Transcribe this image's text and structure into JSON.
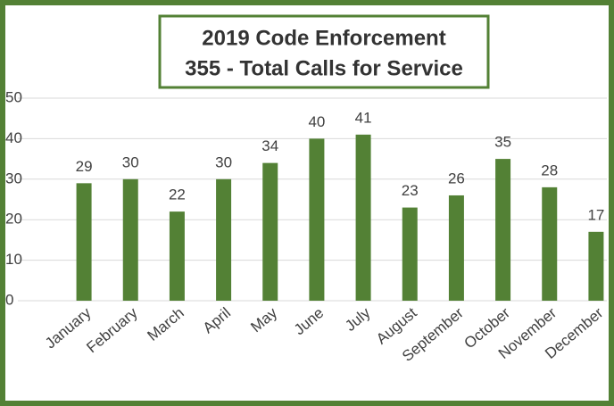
{
  "chart_data": {
    "type": "bar",
    "title": "2019 Code Enforcement",
    "subtitle": "355 - Total Calls for Service",
    "categories": [
      "January",
      "February",
      "March",
      "April",
      "May",
      "June",
      "July",
      "August",
      "September",
      "October",
      "November",
      "December"
    ],
    "values": [
      29,
      30,
      22,
      30,
      34,
      40,
      41,
      23,
      26,
      35,
      28,
      17
    ],
    "color": "#538135",
    "ylim": [
      0,
      50
    ],
    "yticks": [
      0,
      10,
      20,
      30,
      40,
      50
    ],
    "grid": true
  }
}
